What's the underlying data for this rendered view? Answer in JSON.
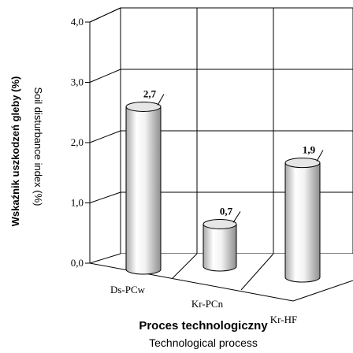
{
  "chart_data": {
    "type": "bar",
    "style": "3d-cylinder",
    "categories": [
      "Ds-PCw",
      "Kr-PCn",
      "Kr-HF"
    ],
    "values": [
      2.7,
      0.7,
      1.9
    ],
    "value_labels": [
      "2,7",
      "0,7",
      "1,9"
    ],
    "ylim": [
      0,
      4
    ],
    "yticks": [
      0,
      1,
      2,
      3,
      4
    ],
    "ytick_labels": [
      "0,0",
      "1,0",
      "2,0",
      "3,0",
      "4,0"
    ],
    "ylabel_primary": "Wskaźnik uszkodzeń gleby (%)",
    "ylabel_secondary": "Soil disturbance index (%)",
    "xlabel_primary": "Proces technologiczny",
    "xlabel_secondary": "Technological process",
    "grid": true,
    "colors": {
      "cylinder_light": "#ffffff",
      "cylinder_dark": "#9a9a9a",
      "line": "#000000"
    }
  }
}
